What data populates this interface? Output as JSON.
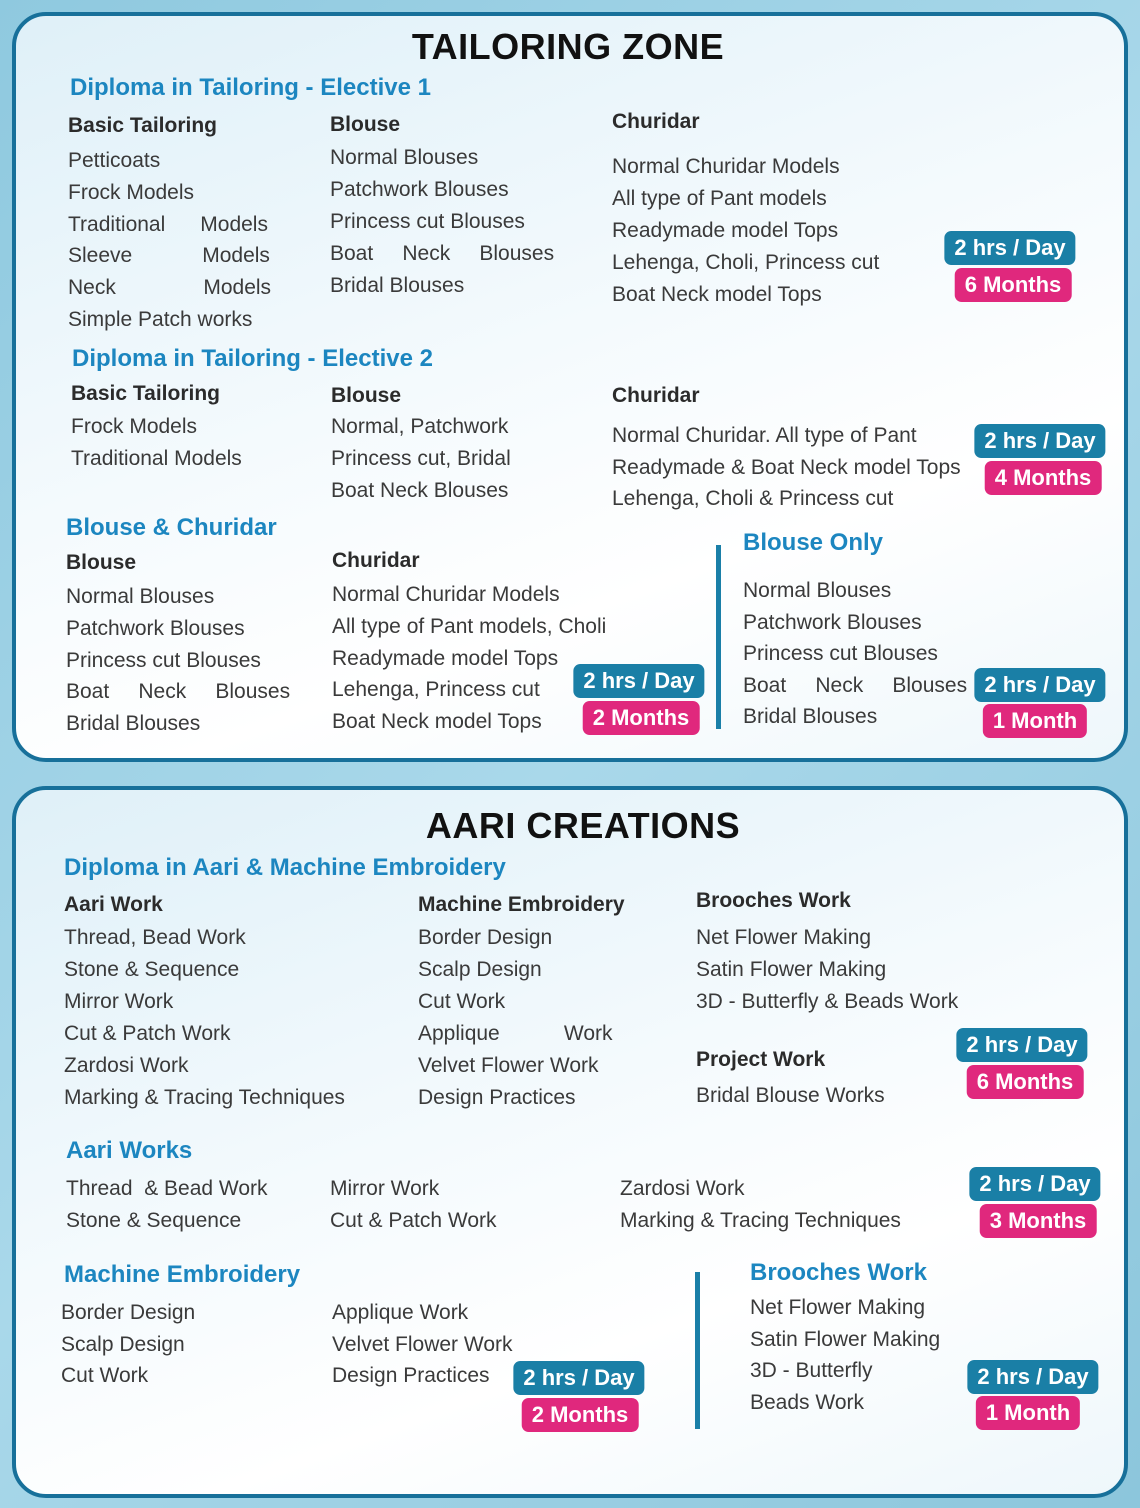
{
  "tailoring": {
    "title": "TAILORING ZONE",
    "elective1": {
      "heading": "Diploma in Tailoring - Elective 1",
      "basic": {
        "title": "Basic Tailoring",
        "items": [
          "Petticoats",
          "Frock Models",
          "Traditional      Models",
          "Sleeve            Models",
          "Neck               Models",
          "Simple Patch works"
        ]
      },
      "blouse": {
        "title": "Blouse",
        "items": [
          "Normal Blouses",
          "Patchwork Blouses",
          "Princess cut Blouses",
          "Boat     Neck     Blouses",
          "Bridal Blouses"
        ]
      },
      "churidar": {
        "title": "Churidar",
        "items": [
          "Normal Churidar Models",
          "All type of Pant models",
          "Readymade model Tops",
          "Lehenga, Choli, Princess cut",
          "Boat Neck model Tops"
        ]
      },
      "hours": "2 hrs / Day",
      "duration": "6 Months"
    },
    "elective2": {
      "heading": "Diploma in Tailoring - Elective 2",
      "basic": {
        "title": "Basic Tailoring",
        "items": [
          "Frock Models",
          "Traditional Models"
        ]
      },
      "blouse": {
        "title": "Blouse",
        "items": [
          "Normal, Patchwork",
          "Princess cut, Bridal",
          "Boat Neck Blouses"
        ]
      },
      "churidar": {
        "title": "Churidar",
        "items": [
          "Normal Churidar. All type of Pant",
          "Readymade & Boat Neck model Tops",
          "Lehenga, Choli & Princess cut"
        ]
      },
      "hours": "2 hrs / Day",
      "duration": "4 Months"
    },
    "blouse_churidar": {
      "heading": "Blouse & Churidar",
      "blouse": {
        "title": "Blouse",
        "items": [
          "Normal Blouses",
          "Patchwork Blouses",
          "Princess cut Blouses",
          "Boat     Neck     Blouses",
          "Bridal Blouses"
        ]
      },
      "churidar": {
        "title": "Churidar",
        "items": [
          "Normal Churidar Models",
          "All type of Pant models, Choli",
          "Readymade model Tops",
          "Lehenga, Princess cut",
          "Boat Neck model Tops"
        ]
      },
      "hours": "2 hrs / Day",
      "duration": "2 Months"
    },
    "blouse_only": {
      "heading": "Blouse Only",
      "items": [
        "Normal Blouses",
        "Patchwork Blouses",
        "Princess cut Blouses",
        "Boat     Neck     Blouses",
        "Bridal Blouses"
      ],
      "hours": "2 hrs / Day",
      "duration": "1 Month"
    }
  },
  "aari": {
    "title": "AARI CREATIONS",
    "diploma": {
      "heading": "Diploma in Aari & Machine Embroidery",
      "aari_work": {
        "title": "Aari Work",
        "items": [
          "Thread, Bead Work",
          "Stone & Sequence",
          "Mirror Work",
          "Cut & Patch Work",
          "Zardosi Work",
          "Marking & Tracing Techniques"
        ]
      },
      "machine": {
        "title": "Machine Embroidery",
        "items": [
          "Border Design",
          "Scalp Design",
          "Cut Work",
          "Applique           Work",
          "Velvet Flower Work",
          "Design Practices"
        ]
      },
      "brooches": {
        "title": "Brooches Work",
        "items": [
          "Net Flower Making",
          "Satin Flower Making",
          "3D - Butterfly & Beads Work"
        ]
      },
      "project": {
        "title": "Project Work",
        "items": [
          "Bridal Blouse Works"
        ]
      },
      "hours": "2 hrs / Day",
      "duration": "6 Months"
    },
    "aari_works": {
      "heading": "Aari Works",
      "col1": [
        "Thread  & Bead Work",
        "Stone & Sequence"
      ],
      "col2": [
        "Mirror Work",
        "Cut & Patch Work"
      ],
      "col3": [
        "Zardosi Work",
        "Marking & Tracing Techniques"
      ],
      "hours": "2 hrs / Day",
      "duration": "3 Months"
    },
    "machine_embroidery": {
      "heading": "Machine Embroidery",
      "col1": [
        "Border Design",
        "Scalp Design",
        "Cut Work"
      ],
      "col2": [
        "Applique Work",
        "Velvet Flower Work",
        "Design Practices"
      ],
      "hours": "2 hrs / Day",
      "duration": "2 Months"
    },
    "brooches_work": {
      "heading": "Brooches Work",
      "items": [
        "Net Flower Making",
        "Satin Flower Making",
        "3D - Butterfly",
        "Beads Work"
      ],
      "hours": "2 hrs / Day",
      "duration": "1 Month"
    }
  },
  "colors": {
    "border": "#17709a",
    "heading": "#1c86c0",
    "hours_badge": "#1a7fa6",
    "duration_badge": "#e0287d"
  }
}
